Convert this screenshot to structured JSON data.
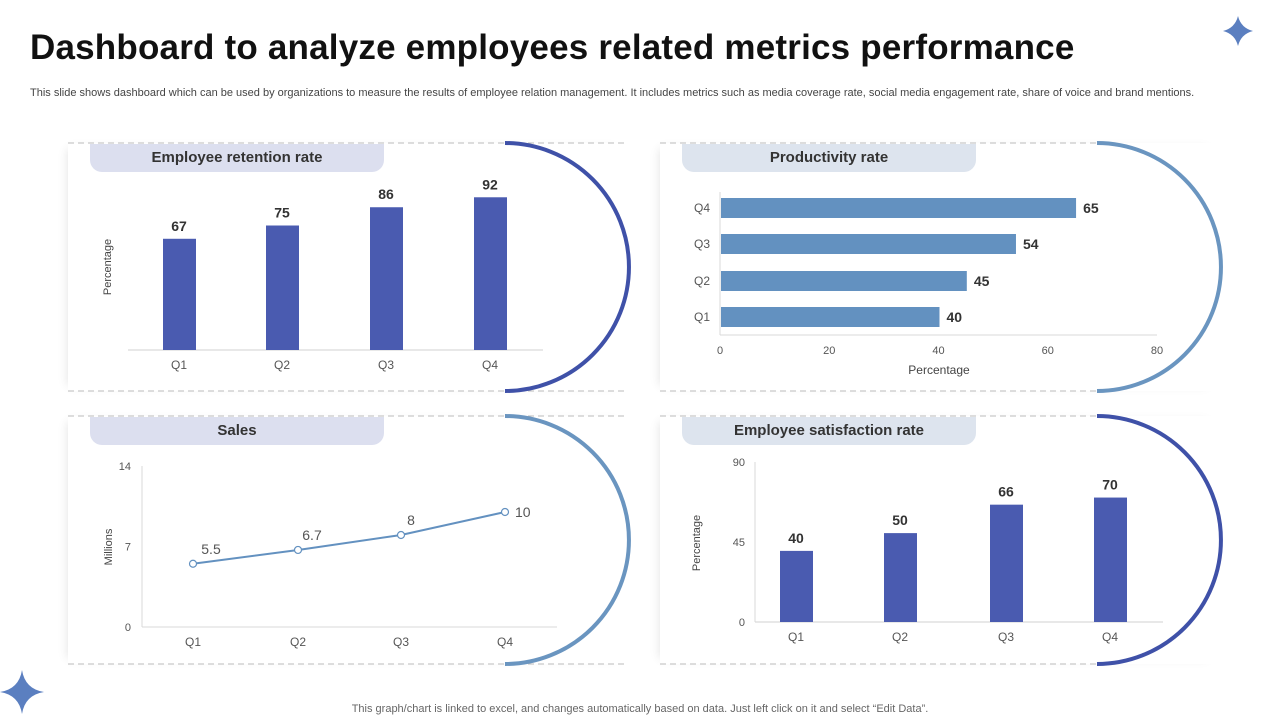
{
  "title": "Dashboard to analyze employees related metrics performance",
  "subtitle": "This slide shows dashboard which can be used by organizations to measure the results of employee relation management. It includes metrics such as media coverage rate, social media engagement rate, share of voice and brand mentions.",
  "footer": "This graph/chart is linked to excel,  and changes automatically based on data. Just left click on it and select “Edit Data”.",
  "colors": {
    "bar": "#4A5BB0",
    "hbar": "#6391C0",
    "line": "#6391C0",
    "arc_dark": "#3F51A8",
    "arc_light": "#6A95C0",
    "title_tab_left": "#DCDFEF",
    "title_tab_right": "#DDE4EE"
  },
  "icons": [
    "sparkle-star-icon-top-right",
    "sparkle-star-icon-bottom-left"
  ],
  "chart_data": [
    {
      "type": "bar",
      "title": "Employee retention rate",
      "categories": [
        "Q1",
        "Q2",
        "Q3",
        "Q4"
      ],
      "values": [
        67,
        75,
        86,
        92
      ],
      "ylabel": "Percentage",
      "xlabel": "",
      "ylim": [
        0,
        100
      ],
      "grid": false
    },
    {
      "type": "bar",
      "orientation": "horizontal",
      "title": "Productivity rate",
      "categories": [
        "Q1",
        "Q2",
        "Q3",
        "Q4"
      ],
      "values": [
        40,
        45,
        54,
        65
      ],
      "xlabel": "Percentage",
      "ylabel": "",
      "xlim": [
        0,
        80
      ],
      "xticks": [
        "0",
        "20",
        "40",
        "60",
        "80"
      ],
      "grid": false
    },
    {
      "type": "line",
      "title": "Sales",
      "categories": [
        "Q1",
        "Q2",
        "Q3",
        "Q4"
      ],
      "values": [
        5.5,
        6.7,
        8,
        10
      ],
      "data_labels": [
        "5.5",
        "6.7",
        "8",
        "10"
      ],
      "ylabel": "Millions",
      "xlabel": "",
      "ylim": [
        0,
        14
      ],
      "yticks": [
        "0",
        "7",
        "14"
      ],
      "grid": false
    },
    {
      "type": "bar",
      "title": "Employee satisfaction rate",
      "categories": [
        "Q1",
        "Q2",
        "Q3",
        "Q4"
      ],
      "values": [
        40,
        50,
        66,
        70
      ],
      "ylabel": "Percentage",
      "xlabel": "",
      "ylim": [
        0,
        90
      ],
      "yticks": [
        "0",
        "45",
        "90"
      ],
      "grid": false
    }
  ]
}
